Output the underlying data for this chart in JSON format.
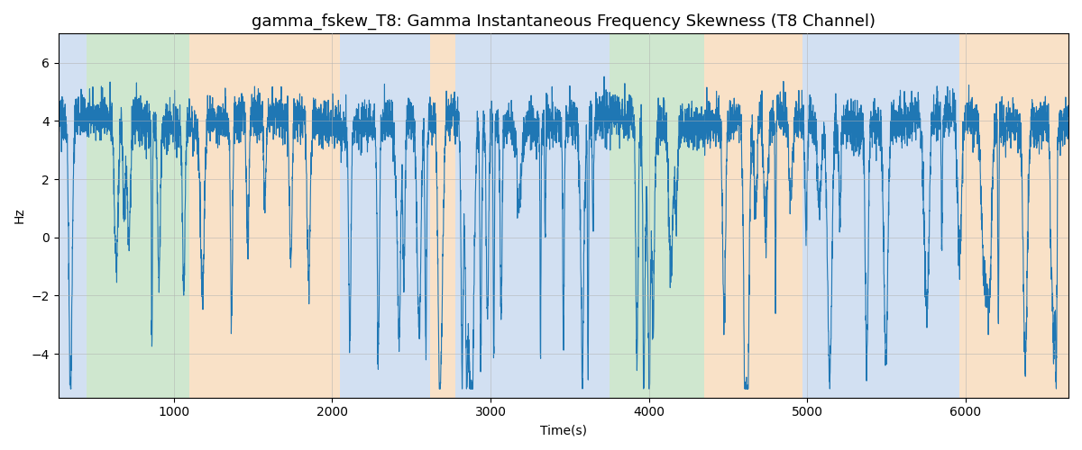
{
  "title": "gamma_fskew_T8: Gamma Instantaneous Frequency Skewness (T8 Channel)",
  "xlabel": "Time(s)",
  "ylabel": "Hz",
  "xlim": [
    270,
    6650
  ],
  "ylim": [
    -5.5,
    7.0
  ],
  "line_color": "#1f77b4",
  "line_width": 0.8,
  "bg_bands": [
    {
      "xstart": 270,
      "xend": 450,
      "color": "#adc8e8",
      "alpha": 0.55
    },
    {
      "xstart": 450,
      "xend": 1100,
      "color": "#a8d4a8",
      "alpha": 0.55
    },
    {
      "xstart": 1100,
      "xend": 2050,
      "color": "#f5c99a",
      "alpha": 0.55
    },
    {
      "xstart": 2050,
      "xend": 2620,
      "color": "#adc8e8",
      "alpha": 0.55
    },
    {
      "xstart": 2620,
      "xend": 2780,
      "color": "#f5c99a",
      "alpha": 0.55
    },
    {
      "xstart": 2780,
      "xend": 3080,
      "color": "#adc8e8",
      "alpha": 0.55
    },
    {
      "xstart": 3080,
      "xend": 3750,
      "color": "#adc8e8",
      "alpha": 0.55
    },
    {
      "xstart": 3750,
      "xend": 4350,
      "color": "#a8d4a8",
      "alpha": 0.55
    },
    {
      "xstart": 4350,
      "xend": 4970,
      "color": "#f5c99a",
      "alpha": 0.55
    },
    {
      "xstart": 4970,
      "xend": 5810,
      "color": "#adc8e8",
      "alpha": 0.55
    },
    {
      "xstart": 5810,
      "xend": 5960,
      "color": "#adc8e8",
      "alpha": 0.55
    },
    {
      "xstart": 5960,
      "xend": 6650,
      "color": "#f5c99a",
      "alpha": 0.55
    }
  ],
  "yticks": [
    -4,
    -2,
    0,
    2,
    4,
    6
  ],
  "xticks": [
    1000,
    2000,
    3000,
    4000,
    5000,
    6000
  ],
  "grid_color": "#b0b0b0",
  "grid_alpha": 0.7,
  "title_fontsize": 13,
  "t_start": 270,
  "t_end": 6650,
  "n_points": 6380
}
